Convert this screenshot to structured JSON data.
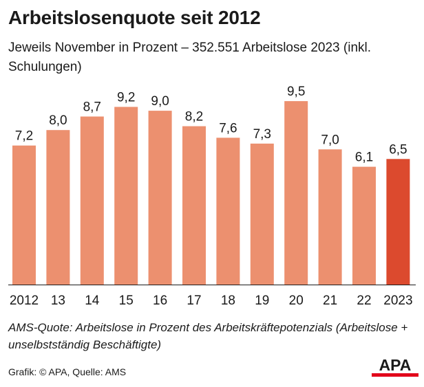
{
  "header": {
    "title": "Arbeitslosenquote seit 2012",
    "subtitle": "Jeweils November in Prozent – 352.551 Arbeitslose 2023 (inkl. Schulungen)"
  },
  "footer": {
    "note": "AMS-Quote: Arbeitslose in Prozent des Arbeitskräftepotenzials (Arbeitslose + unselbstständig Beschäftigte)",
    "source": "Grafik: © APA, Quelle: AMS",
    "logo_text": "APA"
  },
  "colors": {
    "bar": "#ec906f",
    "highlight": "#dc4a2e",
    "text": "#1a1a1a",
    "logo_red": "#e2001a"
  },
  "chart_data": {
    "type": "bar",
    "title": "Arbeitslosenquote seit 2012",
    "xlabel": "",
    "ylabel": "",
    "categories": [
      "2012",
      "13",
      "14",
      "15",
      "16",
      "17",
      "18",
      "19",
      "20",
      "21",
      "22",
      "2023"
    ],
    "values": [
      7.2,
      8.0,
      8.7,
      9.2,
      9.0,
      8.2,
      7.6,
      7.3,
      9.5,
      7.0,
      6.1,
      6.5
    ],
    "value_labels": [
      "7,2",
      "8,0",
      "8,7",
      "9,2",
      "9,0",
      "8,2",
      "7,6",
      "7,3",
      "9,5",
      "7,0",
      "6,1",
      "6,5"
    ],
    "highlight_index": 11,
    "ylim": [
      0,
      10
    ],
    "grid": false
  }
}
